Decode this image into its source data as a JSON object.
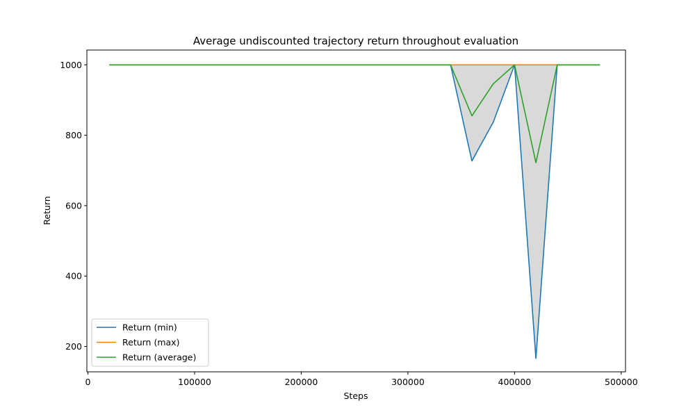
{
  "chart_data": {
    "type": "line",
    "title": "Average undiscounted trajectory return throughout evaluation",
    "xlabel": "Steps",
    "ylabel": "Return",
    "xlim": [
      -1000,
      504000
    ],
    "ylim": [
      128,
      1042
    ],
    "xticks": [
      0,
      100000,
      200000,
      300000,
      400000,
      500000
    ],
    "yticks": [
      200,
      400,
      600,
      800,
      1000
    ],
    "grid": false,
    "legend_position": "lower-left",
    "fill_between": {
      "lower": "Return (min)",
      "upper": "Return (max)",
      "color": "#d9d9d9"
    },
    "x": [
      20000,
      40000,
      60000,
      80000,
      100000,
      120000,
      140000,
      160000,
      180000,
      200000,
      220000,
      240000,
      260000,
      280000,
      300000,
      320000,
      340000,
      360000,
      380000,
      400000,
      420000,
      440000,
      460000,
      480000
    ],
    "series": [
      {
        "name": "Return (min)",
        "color": "#1f77b4",
        "values": [
          1000,
          1000,
          1000,
          1000,
          1000,
          1000,
          1000,
          1000,
          1000,
          1000,
          1000,
          1000,
          1000,
          1000,
          1000,
          1000,
          1000,
          727,
          837,
          1000,
          166,
          1000,
          1000,
          1000
        ]
      },
      {
        "name": "Return (max)",
        "color": "#ff7f0e",
        "values": [
          1000,
          1000,
          1000,
          1000,
          1000,
          1000,
          1000,
          1000,
          1000,
          1000,
          1000,
          1000,
          1000,
          1000,
          1000,
          1000,
          1000,
          1000,
          1000,
          1000,
          1000,
          1000,
          1000,
          1000
        ]
      },
      {
        "name": "Return (average)",
        "color": "#2ca02c",
        "values": [
          1000,
          1000,
          1000,
          1000,
          1000,
          1000,
          1000,
          1000,
          1000,
          1000,
          1000,
          1000,
          1000,
          1000,
          1000,
          1000,
          1000,
          855,
          946,
          1000,
          722,
          1000,
          1000,
          1000
        ]
      }
    ]
  }
}
